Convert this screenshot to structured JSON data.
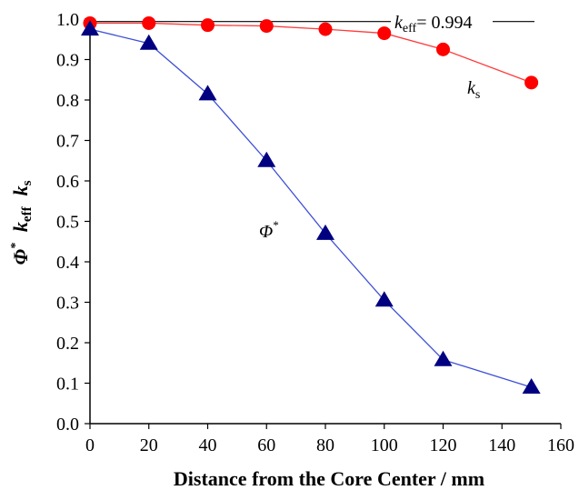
{
  "chart_data": {
    "type": "line",
    "title": "",
    "xlabel": "Distance from the Core Center / mm",
    "ylabel": {
      "phi": "Φ",
      "phi_sup": "*",
      "keff_base": "k",
      "keff_sub": "eff",
      "ks_base": "k",
      "ks_sub": "s"
    },
    "xlim": [
      0,
      160
    ],
    "ylim": [
      0,
      1.0
    ],
    "xticks": [
      "0",
      "20",
      "40",
      "60",
      "80",
      "100",
      "120",
      "140",
      "160"
    ],
    "yticks": [
      "0.0",
      "0.1",
      "0.2",
      "0.3",
      "0.4",
      "0.5",
      "0.6",
      "0.7",
      "0.8",
      "0.9",
      "1.0"
    ],
    "grid": false,
    "series": [
      {
        "name": "ks",
        "color": "#ff0000",
        "marker": "circle",
        "x": [
          0,
          20,
          40,
          60,
          80,
          100,
          120,
          150
        ],
        "y": [
          0.99,
          0.99,
          0.985,
          0.983,
          0.975,
          0.965,
          0.925,
          0.843
        ]
      },
      {
        "name": "Φ*",
        "color": "#000080",
        "marker": "triangle",
        "x": [
          0,
          20,
          40,
          60,
          80,
          100,
          120,
          150
        ],
        "y": [
          0.975,
          0.94,
          0.815,
          0.65,
          0.47,
          0.305,
          0.158,
          0.09
        ]
      }
    ],
    "reference_line": {
      "name": "keff",
      "y": 0.994,
      "color": "#000000",
      "label_base": "k",
      "label_sub": "eff",
      "label_value": "= 0.994"
    },
    "annotations": {
      "ks_base": "k",
      "ks_sub": "s",
      "phi": "Φ",
      "phi_sup": "*"
    }
  }
}
